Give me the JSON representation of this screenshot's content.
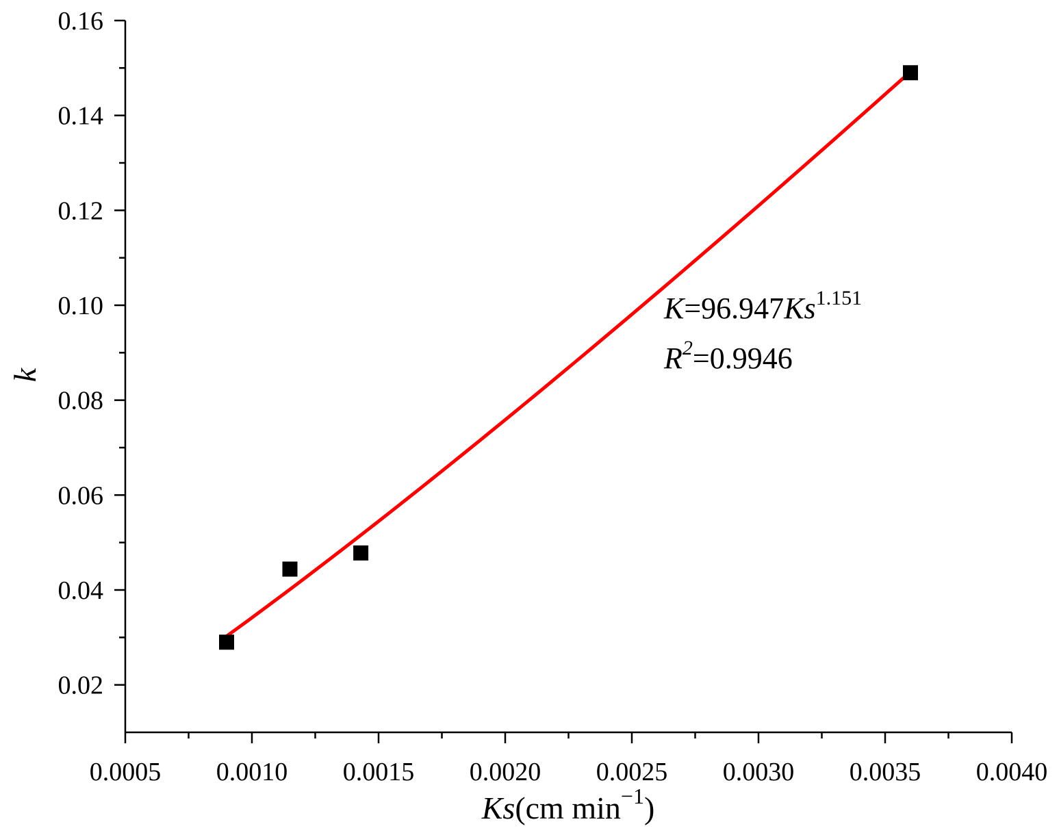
{
  "chart_data": {
    "type": "scatter",
    "title": "",
    "xlabel": {
      "italic": "Ks",
      "rest": "(cm min",
      "sup": "−1",
      "close": ")"
    },
    "ylabel": "k",
    "xlim": [
      0.0005,
      0.004
    ],
    "ylim": [
      0.01,
      0.16
    ],
    "x_ticks": [
      0.0005,
      0.001,
      0.0015,
      0.002,
      0.0025,
      0.003,
      0.0035,
      0.004
    ],
    "x_tick_labels": [
      "0.0005",
      "0.0010",
      "0.0015",
      "0.0020",
      "0.0025",
      "0.0030",
      "0.0035",
      "0.0040"
    ],
    "y_ticks": [
      0.02,
      0.04,
      0.06,
      0.08,
      0.1,
      0.12,
      0.14,
      0.16
    ],
    "y_tick_labels": [
      "0.02",
      "0.04",
      "0.06",
      "0.08",
      "0.10",
      "0.12",
      "0.14",
      "0.16"
    ],
    "grid": false,
    "series": [
      {
        "kind": "scatter",
        "marker": "square",
        "color": "#000000",
        "x": [
          0.0009,
          0.00115,
          0.00143,
          0.0036
        ],
        "y": [
          0.029,
          0.0444,
          0.0478,
          0.149
        ]
      },
      {
        "kind": "fit-line",
        "color": "#ff0000",
        "model": "power",
        "coefficient": 96.947,
        "exponent": 1.151,
        "x_range": [
          0.0009,
          0.0036
        ]
      }
    ],
    "annotation": {
      "eq_lhs": "K",
      "eq_mid": "=96.947",
      "eq_var": "Ks",
      "eq_exp": "1.151",
      "r2_base": "R",
      "r2_sup": "2",
      "r2_rest": "=0.9946"
    }
  }
}
